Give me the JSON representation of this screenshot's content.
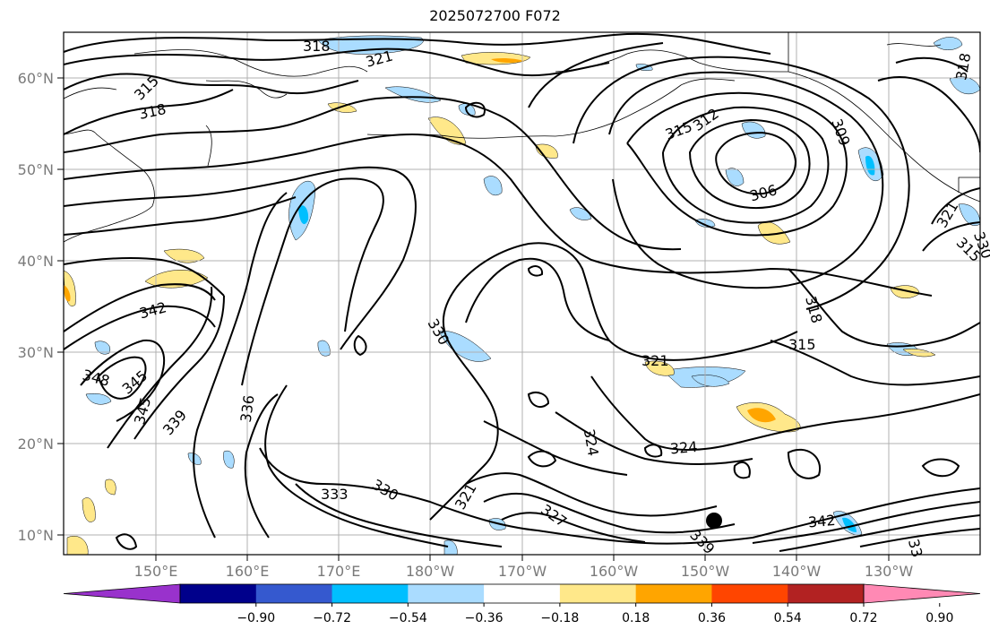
{
  "title": "2025072700 F072",
  "lat_labels": [
    "60°N",
    "50°N",
    "40°N",
    "30°N",
    "20°N",
    "10°N"
  ],
  "lon_labels": [
    "150°E",
    "160°E",
    "170°E",
    "180°W",
    "170°W",
    "160°W",
    "150°W",
    "140°W",
    "130°W"
  ],
  "contour_labels": [
    "318",
    "315",
    "321",
    "318",
    "315",
    "312",
    "309",
    "306",
    "315",
    "318",
    "342",
    "348",
    "345",
    "345",
    "339",
    "336",
    "330",
    "333",
    "330",
    "321",
    "324",
    "324",
    "327",
    "321",
    "330",
    "342",
    "315",
    "318",
    "321",
    "339",
    "33"
  ],
  "colorbar": {
    "ticks": [
      "−0.90",
      "−0.72",
      "−0.54",
      "−0.36",
      "−0.18",
      "0.18",
      "0.36",
      "0.54",
      "0.72",
      "0.90"
    ],
    "colors": [
      "#9932cc",
      "#00008b",
      "#3559cf",
      "#00bfff",
      "#aadcff",
      "#ffffff",
      "#ffe88a",
      "#ffa500",
      "#ff4500",
      "#b22222",
      "#ff89b4"
    ]
  }
}
